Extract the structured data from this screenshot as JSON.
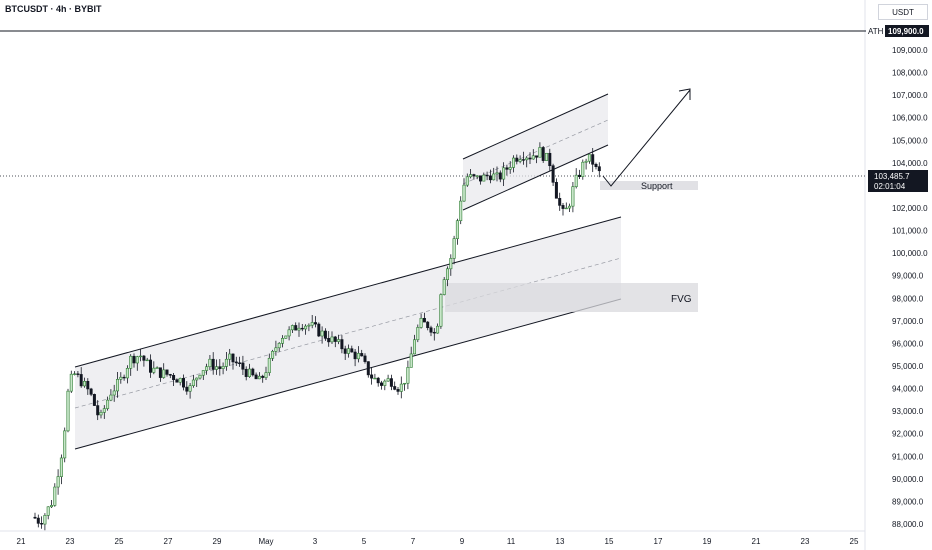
{
  "header": {
    "symbol_label": "BTCUSDT · 4h · BYBIT",
    "currency": "USDT"
  },
  "chart_data": {
    "type": "candlestick",
    "y_axis": {
      "min": 87500,
      "max": 110600,
      "ticks": [
        88000,
        89000,
        90000,
        91000,
        92000,
        93000,
        94000,
        95000,
        96000,
        97000,
        98000,
        99000,
        100000,
        101000,
        102000,
        103000,
        104000,
        105000,
        106000,
        107000,
        108000,
        109000
      ]
    },
    "x_axis": {
      "ticks": [
        "21",
        "23",
        "25",
        "27",
        "29",
        "May",
        "3",
        "5",
        "7",
        "9",
        "11",
        "13",
        "15",
        "17",
        "19",
        "21",
        "23",
        "25"
      ]
    },
    "ath": {
      "label": "ATH",
      "value": 109900,
      "value_label": "109,900.0"
    },
    "last_price": {
      "value": 103485.7,
      "label": "103,485.7",
      "countdown": "02:01:04"
    },
    "annotations": [
      {
        "type": "zone",
        "label": "Support",
        "y_from": 102700,
        "y_to": 103100
      },
      {
        "type": "zone",
        "label": "FVG",
        "y_from": 97400,
        "y_to": 98700
      }
    ],
    "candles": []
  }
}
